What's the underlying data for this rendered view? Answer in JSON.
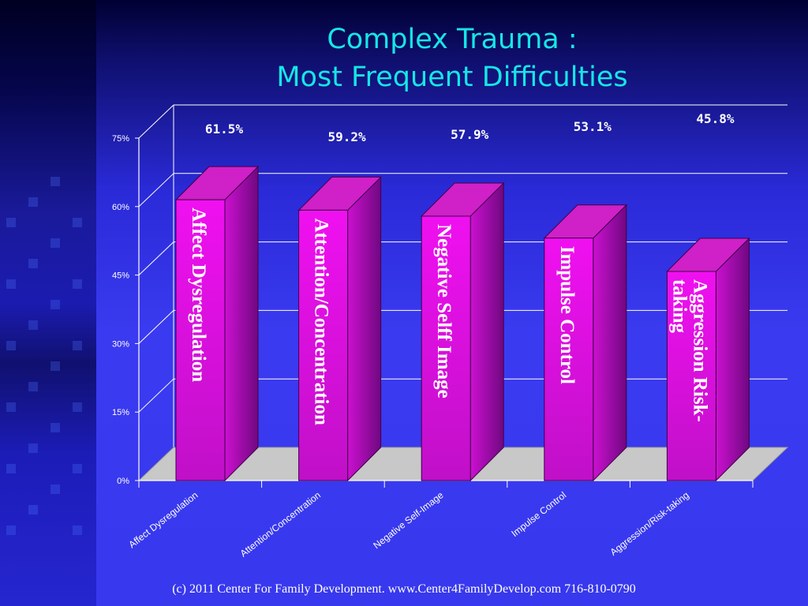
{
  "slide": {
    "title_line1": "Complex Trauma :",
    "title_line2": "Most Frequent Difficulties",
    "footer": "(c) 2011 Center For Family Development.  www.Center4FamilyDevelop.com 716-810-0790"
  },
  "colors": {
    "title": "#16e6e6",
    "bar_face": "#e010e0",
    "bar_side": "#9a0aa0",
    "bar_top": "#d020c8",
    "floor": "#c8c8c8",
    "gridline": "#ffffff",
    "text": "#ffffff"
  },
  "chart_data": {
    "type": "bar",
    "categories": [
      "Affect Dysregulation",
      "Attention/Concentration",
      "Negative Self-Image",
      "Impulse Control",
      "Aggression/Risk-taking"
    ],
    "values": [
      61.5,
      59.2,
      57.9,
      53.1,
      45.8
    ],
    "value_labels": [
      "61.5%",
      "59.2%",
      "57.9%",
      "53.1%",
      "45.8%"
    ],
    "bar_labels": [
      [
        "Affect Dysregulation"
      ],
      [
        "Attention/Concentration"
      ],
      [
        "Negative Selff Image"
      ],
      [
        "Impulse Control"
      ],
      [
        "Aggression Risk-",
        "taking"
      ]
    ],
    "y_ticks": [
      "0%",
      "15%",
      "30%",
      "45%",
      "60%",
      "75%"
    ],
    "y_tick_values": [
      0,
      15,
      30,
      45,
      60,
      75
    ],
    "ylim": [
      0,
      75
    ],
    "grid": true,
    "style": "3d"
  }
}
